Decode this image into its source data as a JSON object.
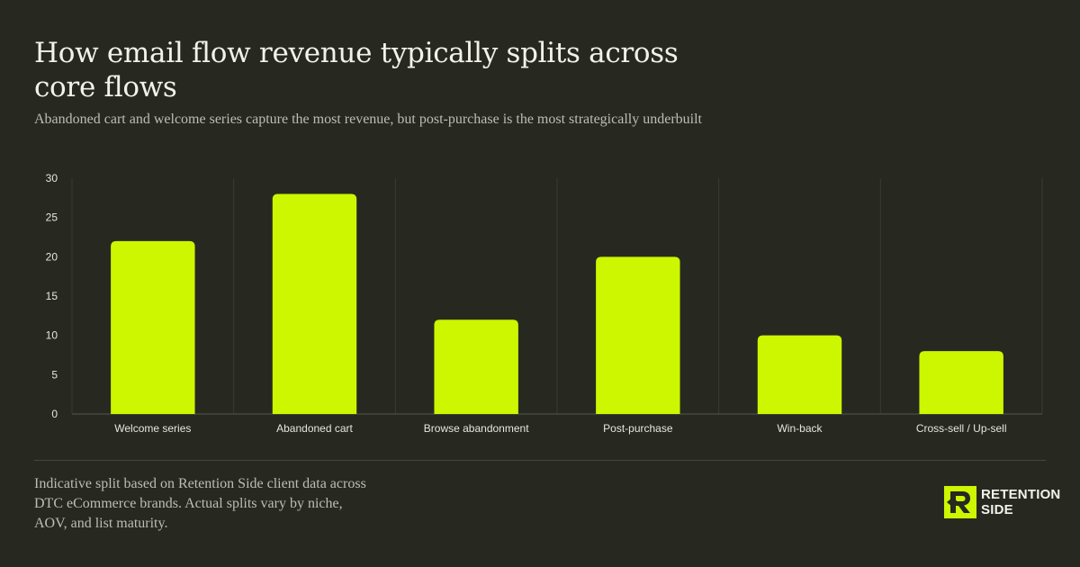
{
  "header": {
    "title": "How email flow revenue typically splits across core flows",
    "subtitle": "Abandoned cart and welcome series capture the most revenue, but post-purchase is the most strategically underbuilt"
  },
  "chart_data": {
    "type": "bar",
    "categories": [
      "Welcome series",
      "Abandoned cart",
      "Browse abandonment",
      "Post-purchase",
      "Win-back",
      "Cross-sell / Up-sell"
    ],
    "values": [
      22,
      28,
      12,
      20,
      10,
      8
    ],
    "title": "",
    "xlabel": "",
    "ylabel": "",
    "ylim": [
      0,
      30
    ],
    "yticks": [
      0,
      5,
      10,
      15,
      20,
      25,
      30
    ],
    "grid": "vertical separators",
    "legend": "none"
  },
  "footer": {
    "note": "Indicative split based on Retention Side client data across DTC eCommerce brands. Actual splits vary by niche, AOV, and list maturity.",
    "brand_line1": "RETENTION",
    "brand_line2": "SIDE"
  },
  "colors": {
    "background": "#272920",
    "bar": "#cdf601",
    "grid": "#3a3c32",
    "axis": "#55574c",
    "text": "#e6e6df"
  }
}
